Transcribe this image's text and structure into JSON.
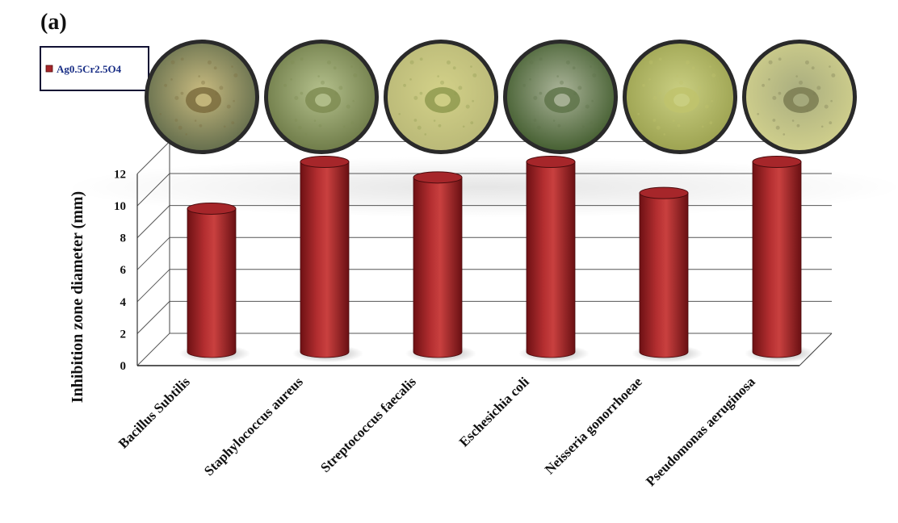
{
  "panel_label": "(a)",
  "chart_data": {
    "type": "bar",
    "style": "3d-cylinder",
    "title": "",
    "xlabel": "",
    "ylabel": "Inhibition zone diameter (mm)",
    "ylim": [
      0,
      12
    ],
    "yticks": [
      "0",
      "2",
      "4",
      "6",
      "8",
      "10",
      "12"
    ],
    "grid": true,
    "legend_position": "top-left",
    "categories": [
      "Bacillus Subtilis",
      "Staphylococcus aureus",
      "Streptococcus faecalis",
      "Eschesichia coli",
      "Neisseria gonorrhoeae",
      "Pseudomonas aeruginosa"
    ],
    "series": [
      {
        "name": "Ag0.5Cr2.5O4",
        "values": [
          9.2,
          12.2,
          11.2,
          12.2,
          10.2,
          12.2
        ]
      }
    ],
    "colors": {
      "bar": "#a6262a",
      "bar_dark": "#6e1114",
      "bar_light": "#c9403f",
      "grid": "#555555",
      "legend_border": "#111133"
    },
    "plate_images": [
      {
        "name": "bacillus-subtilis-plate",
        "colors": [
          "#c9bb80",
          "#7c6d3e",
          "#5f6a4a"
        ]
      },
      {
        "name": "staphylococcus-aureus-plate",
        "colors": [
          "#b5c18d",
          "#7f8c52",
          "#6b7845"
        ]
      },
      {
        "name": "streptococcus-faecalis-plate",
        "colors": [
          "#d3d189",
          "#8f9a4f",
          "#b9b877"
        ]
      },
      {
        "name": "eschesichia-coli-plate",
        "colors": [
          "#acb59a",
          "#5f744a",
          "#3f5a2b"
        ]
      },
      {
        "name": "neisseria-gonorrhoeae-plate",
        "colors": [
          "#cacf82",
          "#bfc36c",
          "#9aa04e"
        ]
      },
      {
        "name": "pseudomonas-aeruginosa-plate",
        "colors": [
          "#a9ad7f",
          "#7b7c52",
          "#d2d18d"
        ]
      }
    ]
  }
}
